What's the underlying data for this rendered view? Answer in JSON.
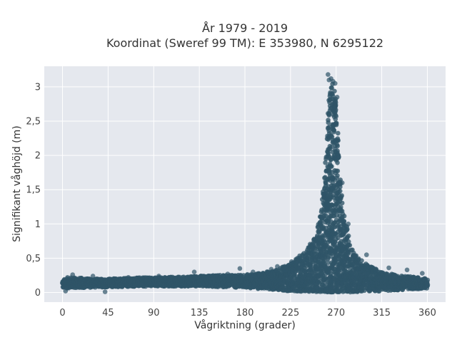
{
  "chart_data": {
    "type": "scatter",
    "title_lines": [
      "År 1979 - 2019",
      "Koordinat (Sweref 99 TM): E 353980, N 6295122"
    ],
    "xlabel": "Vågriktning (grader)",
    "ylabel": "Signifikant våghöjd (m)",
    "xlim": [
      -18,
      378
    ],
    "ylim": [
      -0.14,
      3.3
    ],
    "x_ticks": [
      0,
      45,
      90,
      135,
      180,
      225,
      270,
      315,
      360
    ],
    "x_tick_labels": [
      "0",
      "45",
      "90",
      "135",
      "180",
      "225",
      "270",
      "315",
      "360"
    ],
    "y_ticks": [
      0,
      0.5,
      1,
      1.5,
      2,
      2.5,
      3
    ],
    "y_tick_labels": [
      "0",
      "0,5",
      "1",
      "1,5",
      "2",
      "2,5",
      "3"
    ],
    "grid": true,
    "marker_color": "#2f5468",
    "plot_background": "#e5e8ee",
    "envelope_upper": {
      "x": [
        0,
        5,
        10,
        20,
        30,
        45,
        60,
        90,
        120,
        135,
        150,
        180,
        195,
        210,
        225,
        235,
        240,
        245,
        250,
        253,
        256,
        258,
        260,
        262,
        264,
        266,
        268,
        270,
        272,
        275,
        278,
        282,
        286,
        290,
        295,
        300,
        310,
        315,
        330,
        345,
        360
      ],
      "y": [
        0.18,
        0.22,
        0.22,
        0.21,
        0.2,
        0.2,
        0.21,
        0.22,
        0.23,
        0.24,
        0.25,
        0.26,
        0.28,
        0.33,
        0.42,
        0.55,
        0.62,
        0.72,
        0.88,
        1.05,
        1.3,
        1.65,
        2.1,
        2.6,
        2.95,
        3.08,
        3.05,
        2.8,
        2.3,
        1.55,
        1.15,
        0.85,
        0.65,
        0.55,
        0.47,
        0.42,
        0.34,
        0.3,
        0.25,
        0.23,
        0.2
      ]
    },
    "envelope_lower": {
      "x": [
        0,
        45,
        90,
        135,
        180,
        225,
        270,
        315,
        360
      ],
      "y": [
        0.06,
        0.08,
        0.09,
        0.09,
        0.07,
        0.02,
        0.0,
        0.02,
        0.06
      ]
    },
    "outliers": {
      "x": [
        10,
        30,
        65,
        95,
        130,
        163,
        175,
        188,
        206,
        212,
        226,
        262,
        263,
        265,
        267,
        269,
        271,
        276,
        282,
        300,
        322,
        340,
        355,
        3,
        42
      ],
      "y": [
        0.26,
        0.24,
        0.22,
        0.24,
        0.3,
        0.27,
        0.35,
        0.3,
        0.34,
        0.38,
        0.45,
        3.18,
        3.1,
        3.12,
        3.08,
        3.05,
        2.85,
        1.6,
        1.0,
        0.55,
        0.36,
        0.33,
        0.28,
        0.02,
        0.01
      ]
    }
  }
}
